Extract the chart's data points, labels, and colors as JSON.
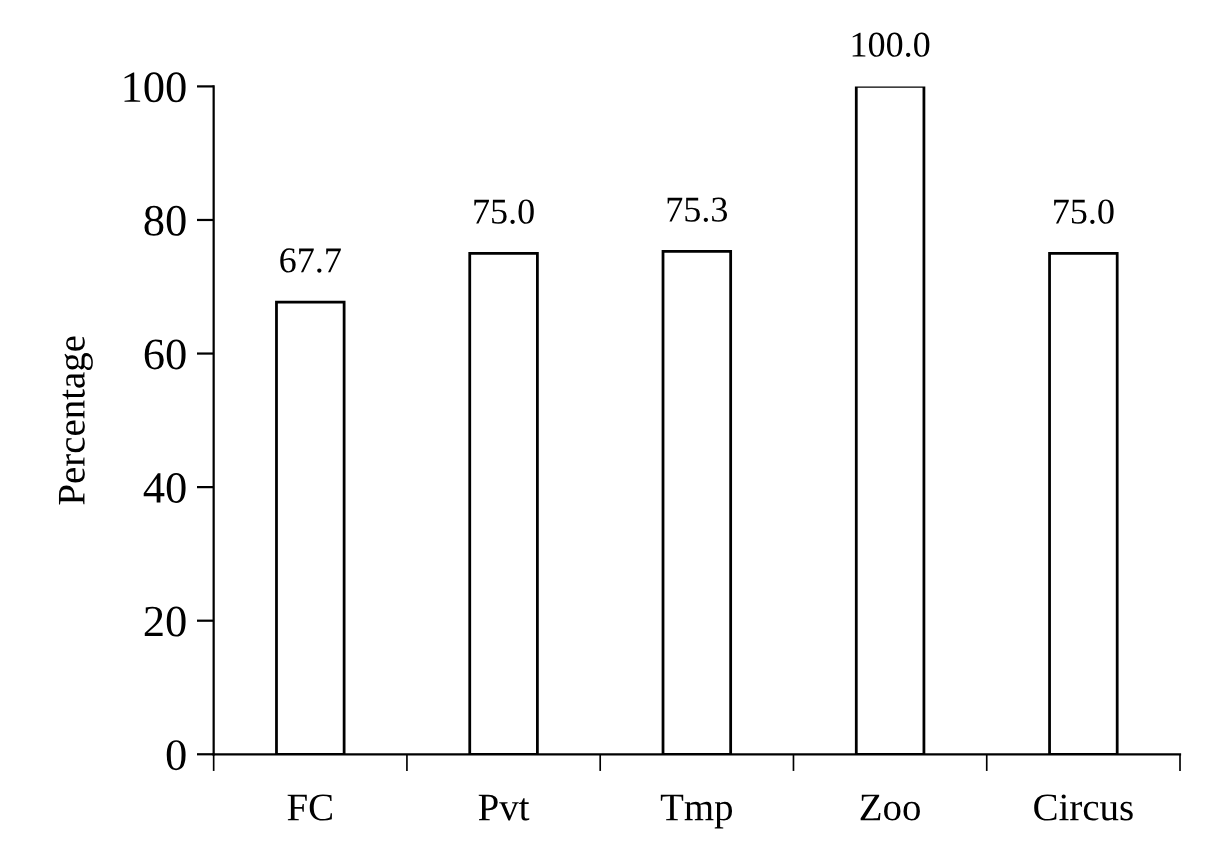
{
  "chart_data": {
    "type": "bar",
    "ylabel": "Percentage",
    "categories": [
      "FC",
      "Pvt",
      "Tmp",
      "Zoo",
      "Circus"
    ],
    "values": [
      67.7,
      75.0,
      75.3,
      100.0,
      75.0
    ],
    "value_labels": [
      "67.7",
      "75.0",
      "75.3",
      "100.0",
      "75.0"
    ],
    "color": "#ffffff",
    "ylim": [
      0,
      100
    ],
    "yticks": [
      0,
      20,
      40,
      60,
      80,
      100
    ],
    "grid": false
  }
}
